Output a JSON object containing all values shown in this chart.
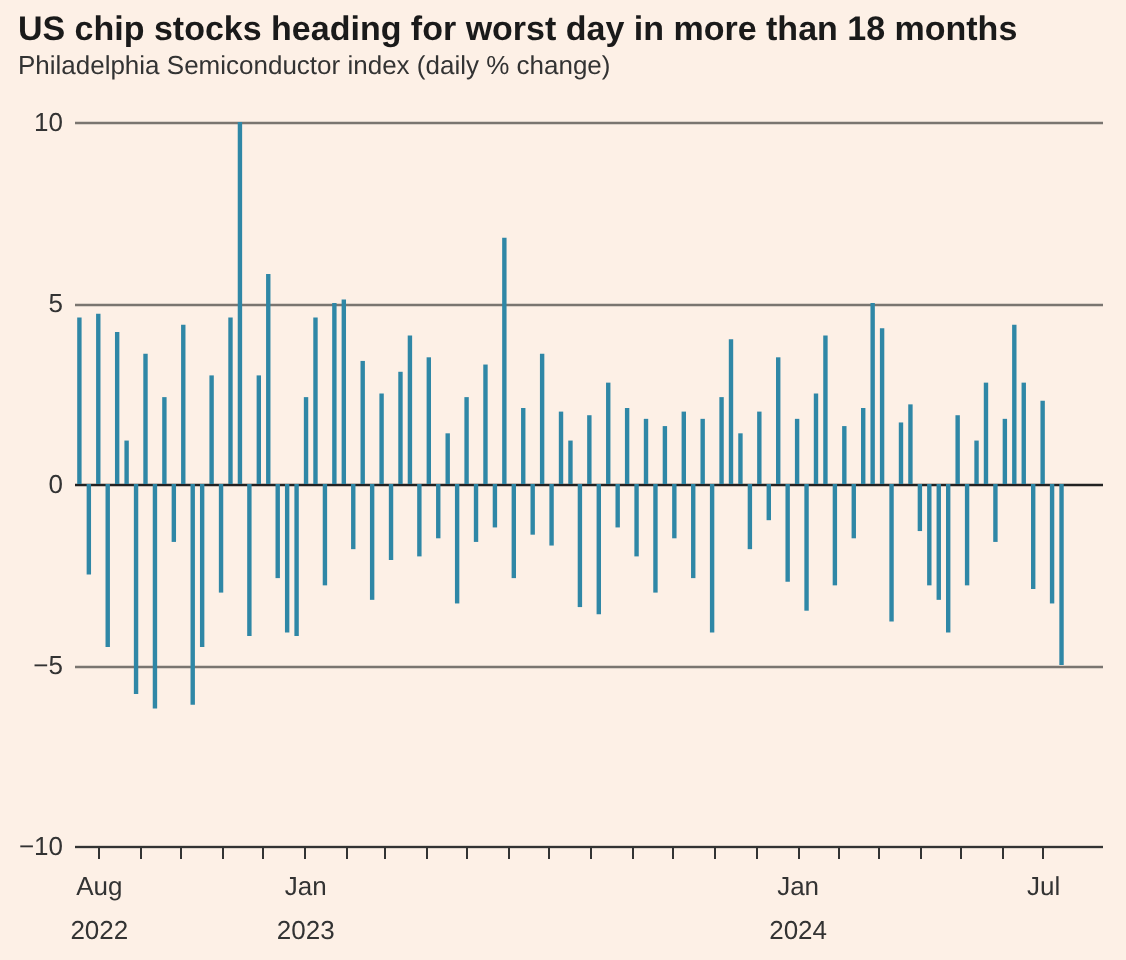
{
  "chart_data": {
    "type": "bar",
    "title": "US chip stocks heading for worst day in more than 18 months",
    "subtitle": "Philadelphia Semiconductor index (daily % change)",
    "x": [
      "2022-07-18",
      "2022-07-25",
      "2022-08-01",
      "2022-08-08",
      "2022-08-15",
      "2022-08-22",
      "2022-08-29",
      "2022-09-05",
      "2022-09-12",
      "2022-09-19",
      "2022-09-26",
      "2022-10-03",
      "2022-10-10",
      "2022-10-17",
      "2022-10-24",
      "2022-10-31",
      "2022-11-07",
      "2022-11-14",
      "2022-11-21",
      "2022-11-28",
      "2022-12-05",
      "2022-12-12",
      "2022-12-19",
      "2022-12-26",
      "2023-01-02",
      "2023-01-09",
      "2023-01-16",
      "2023-01-23",
      "2023-01-30",
      "2023-02-06",
      "2023-02-13",
      "2023-02-20",
      "2023-02-27",
      "2023-03-06",
      "2023-03-13",
      "2023-03-20",
      "2023-03-27",
      "2023-04-03",
      "2023-04-10",
      "2023-04-17",
      "2023-04-24",
      "2023-05-01",
      "2023-05-08",
      "2023-05-15",
      "2023-05-22",
      "2023-05-29",
      "2023-06-05",
      "2023-06-12",
      "2023-06-19",
      "2023-06-26",
      "2023-07-03",
      "2023-07-10",
      "2023-07-17",
      "2023-07-24",
      "2023-07-31",
      "2023-08-07",
      "2023-08-14",
      "2023-08-21",
      "2023-08-28",
      "2023-09-04",
      "2023-09-11",
      "2023-09-18",
      "2023-09-25",
      "2023-10-02",
      "2023-10-09",
      "2023-10-16",
      "2023-10-23",
      "2023-10-30",
      "2023-11-06",
      "2023-11-13",
      "2023-11-20",
      "2023-11-27",
      "2023-12-04",
      "2023-12-11",
      "2023-12-18",
      "2023-12-25",
      "2024-01-01",
      "2024-01-08",
      "2024-01-15",
      "2024-01-22",
      "2024-01-29",
      "2024-02-05",
      "2024-02-12",
      "2024-02-19",
      "2024-02-26",
      "2024-03-04",
      "2024-03-11",
      "2024-03-18",
      "2024-03-25",
      "2024-04-01",
      "2024-04-08",
      "2024-04-15",
      "2024-04-22",
      "2024-04-29",
      "2024-05-06",
      "2024-05-13",
      "2024-05-20",
      "2024-05-27",
      "2024-06-03",
      "2024-06-10",
      "2024-06-17",
      "2024-06-24",
      "2024-07-01",
      "2024-07-08",
      "2024-07-15"
    ],
    "values": [
      4.6,
      -2.5,
      4.7,
      -4.5,
      4.2,
      1.2,
      -5.8,
      3.6,
      -6.2,
      2.4,
      -1.6,
      4.4,
      -6.1,
      -4.5,
      3.0,
      -3.0,
      4.6,
      10.0,
      -4.2,
      3.0,
      5.8,
      -2.6,
      -4.1,
      -4.2,
      2.4,
      4.6,
      -2.8,
      5.0,
      5.1,
      -1.8,
      3.4,
      -3.2,
      2.5,
      -2.1,
      3.1,
      4.1,
      -2.0,
      3.5,
      -1.5,
      1.4,
      -3.3,
      2.4,
      -1.6,
      3.3,
      -1.2,
      6.8,
      -2.6,
      2.1,
      -1.4,
      3.6,
      -1.7,
      2.0,
      1.2,
      -3.4,
      1.9,
      -3.6,
      2.8,
      -1.2,
      2.1,
      -2.0,
      1.8,
      -3.0,
      1.6,
      -1.5,
      2.0,
      -2.6,
      1.8,
      -4.1,
      2.4,
      4.0,
      1.4,
      -1.8,
      2.0,
      -1.0,
      3.5,
      -2.7,
      1.8,
      -3.5,
      2.5,
      4.1,
      -2.8,
      1.6,
      -1.5,
      2.1,
      5.0,
      4.3,
      -3.8,
      1.7,
      2.2,
      -1.3,
      -2.8,
      -3.2,
      -4.1,
      1.9,
      -2.8,
      1.2,
      2.8,
      -1.6,
      1.8,
      4.4,
      2.8,
      -2.9,
      2.3,
      -3.3,
      -5.0
    ],
    "color": "#2f87a6",
    "xlim": [
      "2022-07-14",
      "2024-08-14"
    ],
    "xticks": [
      {
        "value": "2022-08-01",
        "label": "Aug 2022"
      },
      {
        "value": "2022-09-01",
        "label": null
      },
      {
        "value": "2022-10-01",
        "label": null
      },
      {
        "value": "2022-11-01",
        "label": null
      },
      {
        "value": "2022-12-01",
        "label": null
      },
      {
        "value": "2023-01-01",
        "label": "Jan 2023"
      },
      {
        "value": "2023-02-01",
        "label": null
      },
      {
        "value": "2023-03-01",
        "label": null
      },
      {
        "value": "2023-04-01",
        "label": null
      },
      {
        "value": "2023-05-01",
        "label": null
      },
      {
        "value": "2023-06-01",
        "label": null
      },
      {
        "value": "2023-07-01",
        "label": null
      },
      {
        "value": "2023-08-01",
        "label": null
      },
      {
        "value": "2023-09-01",
        "label": null
      },
      {
        "value": "2023-10-01",
        "label": null
      },
      {
        "value": "2023-11-01",
        "label": null
      },
      {
        "value": "2023-12-01",
        "label": null
      },
      {
        "value": "2024-01-01",
        "label": "Jan 2024"
      },
      {
        "value": "2024-02-01",
        "label": null
      },
      {
        "value": "2024-03-01",
        "label": null
      },
      {
        "value": "2024-04-01",
        "label": null
      },
      {
        "value": "2024-05-01",
        "label": null
      },
      {
        "value": "2024-06-01",
        "label": null
      },
      {
        "value": "2024-07-01",
        "label": "Jul"
      }
    ],
    "ylim": [
      -10,
      10
    ],
    "yticks": [
      -10,
      -5,
      0,
      5,
      10
    ],
    "grid": "y"
  }
}
